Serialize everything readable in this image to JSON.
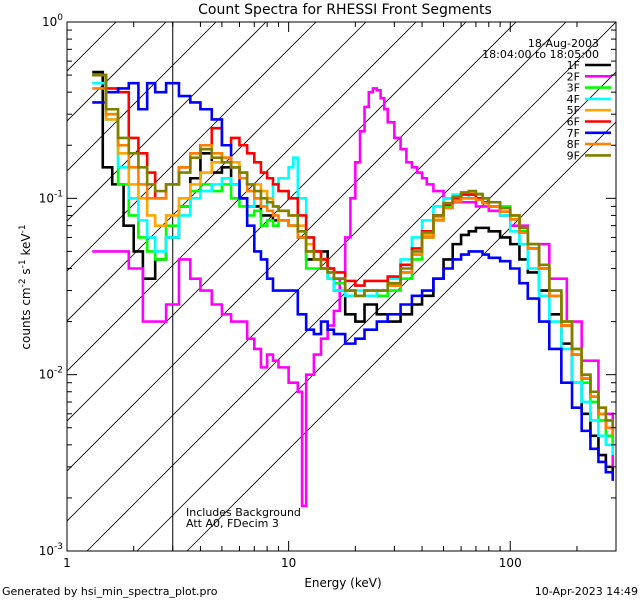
{
  "chart_data": {
    "type": "line",
    "title": "Count Spectra for RHESSI Front Segments",
    "xlabel": "Energy (keV)",
    "ylabel": "counts cm",
    "ylabel_sup1": "-2",
    "ylabel_mid": " s",
    "ylabel_sup2": "-1",
    "ylabel_end": " keV",
    "ylabel_sup3": "-1",
    "x_scale": "log",
    "y_scale": "log",
    "xlim": [
      1,
      300
    ],
    "ylim": [
      0.001,
      1
    ],
    "x_ticks": [
      {
        "value": 1,
        "label": "1"
      },
      {
        "value": 10,
        "label": "10"
      },
      {
        "value": 100,
        "label": "100"
      }
    ],
    "y_ticks": [
      {
        "value": 0.001,
        "base": "10",
        "exp": "-3"
      },
      {
        "value": 0.01,
        "base": "10",
        "exp": "-2"
      },
      {
        "value": 0.1,
        "base": "10",
        "exp": "-1"
      },
      {
        "value": 1,
        "base": "10",
        "exp": "0"
      }
    ],
    "date": "18-Aug-2003",
    "time_range": "18:04:00 to 18:05:00",
    "shaded_region": {
      "x_from": 1,
      "x_to": 3,
      "pattern": "diagonal hatch"
    },
    "annotation_line1": "Includes Background",
    "annotation_line2": "Att A0, FDecim 3",
    "footer_left": "Generated by hsi_min_spectra_plot.pro",
    "footer_right": "10-Apr-2023 14:49",
    "series": [
      {
        "name": "1F",
        "color": "#000000",
        "x": [
          1.3,
          1.45,
          1.6,
          1.8,
          2.0,
          2.2,
          2.5,
          2.8,
          3.2,
          3.6,
          4.0,
          4.5,
          5.0,
          5.5,
          6.0,
          6.5,
          7.0,
          7.5,
          8.0,
          8.5,
          9.0,
          10,
          11,
          12,
          13,
          14,
          15,
          16,
          18,
          20,
          22,
          25,
          28,
          32,
          36,
          40,
          45,
          50,
          55,
          60,
          65,
          70,
          75,
          80,
          90,
          100,
          110,
          120,
          135,
          150,
          170,
          190,
          210,
          230,
          250,
          270,
          290
        ],
        "values": [
          0.52,
          0.15,
          0.12,
          0.07,
          0.05,
          0.035,
          0.045,
          0.06,
          0.09,
          0.13,
          0.18,
          0.14,
          0.15,
          0.12,
          0.1,
          0.09,
          0.09,
          0.08,
          0.08,
          0.075,
          0.075,
          0.07,
          0.06,
          0.045,
          0.045,
          0.05,
          0.04,
          0.03,
          0.022,
          0.02,
          0.025,
          0.022,
          0.02,
          0.022,
          0.025,
          0.028,
          0.035,
          0.045,
          0.055,
          0.062,
          0.065,
          0.068,
          0.068,
          0.065,
          0.06,
          0.055,
          0.045,
          0.038,
          0.03,
          0.022,
          0.015,
          0.009,
          0.006,
          0.0045,
          0.0035,
          0.003,
          0.0028
        ]
      },
      {
        "name": "2F",
        "color": "#ff00ff",
        "x": [
          1.3,
          1.6,
          1.9,
          2.2,
          2.5,
          2.8,
          3.2,
          3.6,
          4.0,
          4.5,
          5.0,
          5.5,
          6.0,
          6.5,
          7.0,
          7.5,
          8.0,
          8.5,
          9.0,
          10,
          11,
          11.5,
          12,
          13,
          14,
          15,
          16,
          17,
          18,
          19,
          20,
          21,
          22,
          23,
          24,
          25,
          26,
          27,
          28,
          30,
          32,
          34,
          36,
          38,
          40,
          42,
          45,
          50,
          55,
          60,
          70,
          80,
          90,
          100,
          120,
          150,
          180,
          210,
          250,
          290
        ],
        "values": [
          0.05,
          0.05,
          0.04,
          0.02,
          0.02,
          0.025,
          0.045,
          0.035,
          0.03,
          0.025,
          0.022,
          0.02,
          0.02,
          0.016,
          0.014,
          0.011,
          0.013,
          0.012,
          0.011,
          0.009,
          0.008,
          0.0018,
          0.01,
          0.013,
          0.016,
          0.019,
          0.023,
          0.035,
          0.06,
          0.1,
          0.16,
          0.24,
          0.33,
          0.4,
          0.42,
          0.41,
          0.37,
          0.32,
          0.27,
          0.22,
          0.19,
          0.16,
          0.15,
          0.14,
          0.13,
          0.12,
          0.11,
          0.1,
          0.095,
          0.095,
          0.09,
          0.085,
          0.08,
          0.07,
          0.055,
          0.035,
          0.02,
          0.012,
          0.006,
          0.003
        ]
      },
      {
        "name": "3F",
        "color": "#00ff00",
        "x": [
          1.3,
          1.5,
          1.7,
          1.9,
          2.1,
          2.3,
          2.5,
          2.8,
          3.2,
          3.6,
          4.0,
          4.5,
          5.0,
          5.5,
          6.0,
          6.5,
          7.0,
          7.5,
          8.0,
          8.5,
          9.0,
          10,
          11,
          12,
          13,
          14,
          15,
          16,
          18,
          20,
          22,
          25,
          28,
          32,
          36,
          40,
          45,
          50,
          55,
          60,
          65,
          70,
          75,
          80,
          90,
          100,
          110,
          120,
          135,
          150,
          170,
          190,
          210,
          230,
          250,
          270,
          290
        ],
        "values": [
          0.5,
          0.3,
          0.12,
          0.08,
          0.06,
          0.05,
          0.045,
          0.07,
          0.09,
          0.11,
          0.12,
          0.11,
          0.12,
          0.1,
          0.09,
          0.08,
          0.085,
          0.07,
          0.075,
          0.07,
          0.075,
          0.07,
          0.065,
          0.04,
          0.04,
          0.04,
          0.035,
          0.033,
          0.03,
          0.028,
          0.03,
          0.028,
          0.03,
          0.035,
          0.045,
          0.06,
          0.075,
          0.09,
          0.1,
          0.105,
          0.105,
          0.1,
          0.1,
          0.095,
          0.09,
          0.08,
          0.065,
          0.055,
          0.04,
          0.028,
          0.02,
          0.014,
          0.009,
          0.007,
          0.0055,
          0.0045,
          0.004
        ]
      },
      {
        "name": "4F",
        "color": "#00ffff",
        "x": [
          1.3,
          1.5,
          1.7,
          1.9,
          2.1,
          2.3,
          2.5,
          2.8,
          3.2,
          3.6,
          4.0,
          4.5,
          5.0,
          5.5,
          6.0,
          6.5,
          7.0,
          7.5,
          8.0,
          8.5,
          9.0,
          10,
          10.5,
          11,
          12,
          13,
          14,
          15,
          16,
          18,
          20,
          22,
          25,
          28,
          32,
          36,
          40,
          45,
          50,
          55,
          60,
          65,
          70,
          75,
          80,
          90,
          100,
          110,
          120,
          135,
          150,
          170,
          190,
          210,
          230,
          250,
          270,
          290
        ],
        "values": [
          0.45,
          0.28,
          0.15,
          0.1,
          0.075,
          0.06,
          0.05,
          0.06,
          0.08,
          0.1,
          0.11,
          0.12,
          0.13,
          0.12,
          0.1,
          0.09,
          0.1,
          0.09,
          0.1,
          0.12,
          0.13,
          0.15,
          0.17,
          0.1,
          0.06,
          0.05,
          0.045,
          0.035,
          0.03,
          0.028,
          0.03,
          0.028,
          0.03,
          0.035,
          0.045,
          0.06,
          0.075,
          0.09,
          0.1,
          0.105,
          0.105,
          0.1,
          0.1,
          0.095,
          0.09,
          0.08,
          0.065,
          0.055,
          0.04,
          0.028,
          0.02,
          0.014,
          0.009,
          0.007,
          0.0055,
          0.0045,
          0.004,
          0.0035
        ]
      },
      {
        "name": "5F",
        "color": "#ffa500",
        "x": [
          1.3,
          1.5,
          1.7,
          1.9,
          2.1,
          2.3,
          2.5,
          2.8,
          3.2,
          3.6,
          4.0,
          4.5,
          5.0,
          5.5,
          6.0,
          6.5,
          7.0,
          7.5,
          8.0,
          8.5,
          9.0,
          10,
          11,
          12,
          13,
          14,
          15,
          16,
          18,
          20,
          22,
          25,
          28,
          32,
          36,
          40,
          45,
          50,
          55,
          60,
          65,
          70,
          75,
          80,
          90,
          100,
          110,
          120,
          135,
          150,
          170,
          190,
          210,
          230,
          250,
          270,
          290
        ],
        "values": [
          0.5,
          0.28,
          0.18,
          0.12,
          0.1,
          0.08,
          0.07,
          0.08,
          0.1,
          0.12,
          0.14,
          0.16,
          0.17,
          0.16,
          0.14,
          0.12,
          0.12,
          0.11,
          0.1,
          0.09,
          0.085,
          0.08,
          0.07,
          0.055,
          0.05,
          0.045,
          0.04,
          0.035,
          0.03,
          0.028,
          0.03,
          0.03,
          0.032,
          0.038,
          0.048,
          0.062,
          0.078,
          0.092,
          0.1,
          0.105,
          0.108,
          0.105,
          0.1,
          0.095,
          0.088,
          0.08,
          0.068,
          0.055,
          0.042,
          0.03,
          0.02,
          0.014,
          0.01,
          0.008,
          0.0065,
          0.0055,
          0.005
        ]
      },
      {
        "name": "6F",
        "color": "#ff0000",
        "x": [
          1.3,
          1.5,
          1.7,
          1.9,
          2.1,
          2.3,
          2.5,
          2.8,
          3.2,
          3.6,
          4.0,
          4.5,
          5.0,
          5.5,
          6.0,
          6.5,
          7.0,
          7.5,
          8.0,
          8.5,
          9.0,
          10,
          11,
          12,
          13,
          14,
          15,
          16,
          18,
          20,
          22,
          25,
          28,
          32,
          36,
          40,
          45,
          50,
          55,
          60,
          65,
          70,
          75,
          80,
          90,
          100,
          110,
          120,
          135,
          150,
          170,
          190,
          210,
          230,
          250,
          270,
          290
        ],
        "values": [
          0.5,
          0.42,
          0.4,
          0.22,
          0.18,
          0.14,
          0.1,
          0.12,
          0.15,
          0.18,
          0.2,
          0.25,
          0.2,
          0.22,
          0.2,
          0.18,
          0.16,
          0.14,
          0.13,
          0.12,
          0.11,
          0.1,
          0.08,
          0.06,
          0.05,
          0.045,
          0.04,
          0.038,
          0.034,
          0.032,
          0.034,
          0.034,
          0.036,
          0.042,
          0.052,
          0.065,
          0.08,
          0.092,
          0.1,
          0.105,
          0.105,
          0.1,
          0.095,
          0.09,
          0.084,
          0.076,
          0.064,
          0.052,
          0.04,
          0.028,
          0.019,
          0.013,
          0.0095,
          0.0075,
          0.006,
          0.005,
          0.0045
        ]
      },
      {
        "name": "7F",
        "color": "#0000ff",
        "x": [
          1.3,
          1.5,
          1.7,
          1.9,
          2.1,
          2.3,
          2.5,
          2.8,
          3.2,
          3.6,
          4.0,
          4.5,
          5.0,
          5.5,
          6.0,
          6.5,
          7.0,
          7.5,
          8.0,
          8.5,
          9.0,
          10,
          11,
          12,
          13,
          14,
          15,
          16,
          18,
          20,
          22,
          25,
          28,
          32,
          36,
          40,
          45,
          50,
          55,
          60,
          65,
          70,
          75,
          80,
          90,
          100,
          110,
          120,
          135,
          150,
          170,
          190,
          210,
          230,
          250,
          270,
          290
        ],
        "values": [
          0.35,
          0.4,
          0.42,
          0.45,
          0.32,
          0.45,
          0.4,
          0.45,
          0.38,
          0.35,
          0.32,
          0.28,
          0.2,
          0.15,
          0.1,
          0.07,
          0.05,
          0.045,
          0.035,
          0.03,
          0.03,
          0.03,
          0.022,
          0.018,
          0.017,
          0.02,
          0.018,
          0.017,
          0.015,
          0.016,
          0.018,
          0.02,
          0.022,
          0.025,
          0.028,
          0.03,
          0.035,
          0.04,
          0.045,
          0.048,
          0.05,
          0.05,
          0.048,
          0.046,
          0.044,
          0.04,
          0.033,
          0.027,
          0.02,
          0.014,
          0.009,
          0.0065,
          0.0048,
          0.0038,
          0.0032,
          0.0028,
          0.0025
        ]
      },
      {
        "name": "8F",
        "color": "#ff7f00",
        "x": [
          1.3,
          1.5,
          1.7,
          1.9,
          2.1,
          2.3,
          2.5,
          2.8,
          3.2,
          3.6,
          4.0,
          4.5,
          5.0,
          5.5,
          6.0,
          6.5,
          7.0,
          7.5,
          8.0,
          8.5,
          9.0,
          10,
          11,
          12,
          13,
          14,
          15,
          16,
          18,
          20,
          22,
          25,
          28,
          32,
          36,
          40,
          45,
          50,
          55,
          60,
          65,
          70,
          75,
          80,
          90,
          100,
          110,
          120,
          135,
          150,
          170,
          190,
          210,
          230,
          250,
          270,
          290
        ],
        "values": [
          0.42,
          0.3,
          0.2,
          0.15,
          0.12,
          0.1,
          0.1,
          0.12,
          0.15,
          0.18,
          0.2,
          0.18,
          0.17,
          0.15,
          0.13,
          0.11,
          0.1,
          0.09,
          0.085,
          0.08,
          0.075,
          0.07,
          0.06,
          0.05,
          0.045,
          0.04,
          0.038,
          0.035,
          0.03,
          0.028,
          0.03,
          0.03,
          0.032,
          0.038,
          0.048,
          0.06,
          0.075,
          0.088,
          0.096,
          0.1,
          0.1,
          0.098,
          0.094,
          0.09,
          0.084,
          0.076,
          0.064,
          0.052,
          0.04,
          0.028,
          0.019,
          0.013,
          0.0095,
          0.0075,
          0.006,
          0.005,
          0.0045
        ]
      },
      {
        "name": "9F",
        "color": "#808000",
        "x": [
          1.3,
          1.5,
          1.7,
          1.9,
          2.1,
          2.3,
          2.5,
          2.8,
          3.2,
          3.6,
          4.0,
          4.5,
          5.0,
          5.5,
          6.0,
          6.5,
          7.0,
          7.5,
          8.0,
          8.5,
          9.0,
          10,
          11,
          12,
          13,
          14,
          15,
          16,
          18,
          20,
          22,
          25,
          28,
          32,
          36,
          40,
          45,
          50,
          55,
          60,
          65,
          70,
          75,
          80,
          90,
          100,
          110,
          120,
          135,
          150,
          170,
          190,
          210,
          230,
          250,
          270,
          290
        ],
        "values": [
          0.5,
          0.32,
          0.22,
          0.18,
          0.15,
          0.12,
          0.11,
          0.12,
          0.14,
          0.17,
          0.19,
          0.17,
          0.16,
          0.15,
          0.14,
          0.12,
          0.11,
          0.1,
          0.095,
          0.09,
          0.085,
          0.08,
          0.065,
          0.05,
          0.045,
          0.04,
          0.038,
          0.035,
          0.03,
          0.028,
          0.03,
          0.03,
          0.033,
          0.04,
          0.05,
          0.064,
          0.08,
          0.094,
          0.102,
          0.108,
          0.11,
          0.106,
          0.1,
          0.095,
          0.088,
          0.08,
          0.068,
          0.055,
          0.042,
          0.03,
          0.02,
          0.014,
          0.01,
          0.008,
          0.0065,
          0.0055,
          0.005
        ]
      }
    ]
  }
}
